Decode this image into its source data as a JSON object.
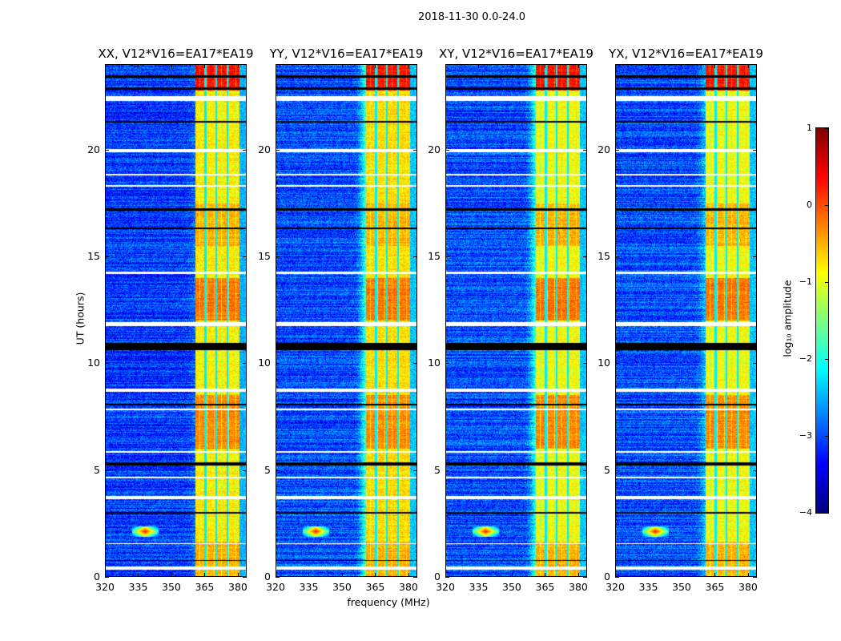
{
  "chart_data": {
    "type": "heatmap",
    "suptitle": "2018-11-30 0.0-24.0",
    "xlabel": "frequency (MHz)",
    "ylabel": "UT (hours)",
    "xlim": [
      320,
      384
    ],
    "ylim": [
      0,
      24
    ],
    "xticks": [
      "320",
      "335",
      "350",
      "365",
      "380"
    ],
    "xtick_values": [
      320,
      335,
      350,
      365,
      380
    ],
    "yticks": [
      "0",
      "5",
      "10",
      "15",
      "20"
    ],
    "ytick_values": [
      0,
      5,
      10,
      15,
      20
    ],
    "colorbar": {
      "label": "log₁₀ amplitude",
      "range": [
        -4,
        1
      ],
      "colormap": "jet",
      "ticks": [
        "1",
        "0",
        "−1",
        "−2",
        "−3",
        "−4"
      ],
      "tick_values": [
        1,
        0,
        -1,
        -2,
        -3,
        -4
      ]
    },
    "panels": [
      {
        "title": "XX, V12*V16=EA17*EA19",
        "background_level": -3.1,
        "band_level": -0.8,
        "edge_glow": 0.2
      },
      {
        "title": "YY, V12*V16=EA17*EA19",
        "background_level": -3.0,
        "band_level": -0.7,
        "edge_glow": 1.0
      },
      {
        "title": "XY, V12*V16=EA17*EA19",
        "background_level": -3.0,
        "band_level": -0.9,
        "edge_glow": 0.9
      },
      {
        "title": "YX, V12*V16=EA17*EA19",
        "background_level": -3.0,
        "band_level": -0.9,
        "edge_glow": 0.5
      }
    ],
    "band": {
      "freq_range_mhz": [
        361,
        381
      ],
      "subband_edges_mhz": [
        365.5,
        370.5,
        375.5
      ]
    },
    "hot_intervals_hours": [
      {
        "range": [
          22.8,
          24
        ],
        "level": 0.3
      },
      {
        "range": [
          12.0,
          14.0
        ],
        "level": -0.2
      },
      {
        "range": [
          6.0,
          8.5
        ],
        "level": -0.3
      },
      {
        "range": [
          15.5,
          17.5
        ],
        "level": -0.5
      },
      {
        "range": [
          0,
          1.6
        ],
        "level": -0.5
      }
    ],
    "masked_rows_hours": [
      [
        22.3,
        22.55
      ],
      [
        19.9,
        20.05
      ],
      [
        18.8,
        18.88
      ],
      [
        18.3,
        18.36
      ],
      [
        14.2,
        14.28
      ],
      [
        11.75,
        11.92
      ],
      [
        8.65,
        8.8
      ],
      [
        7.8,
        7.86
      ],
      [
        5.8,
        5.86
      ],
      [
        4.6,
        4.66
      ],
      [
        3.6,
        3.75
      ],
      [
        1.5,
        1.56
      ],
      [
        0.3,
        0.45
      ]
    ],
    "flagged_rows_hours": [
      [
        23.4,
        23.5
      ],
      [
        22.85,
        22.95
      ],
      [
        21.3,
        21.36
      ],
      [
        17.15,
        17.25
      ],
      [
        16.3,
        16.36
      ],
      [
        10.6,
        10.95
      ],
      [
        8.0,
        8.08
      ],
      [
        5.2,
        5.35
      ],
      [
        2.95,
        3.0
      ],
      [
        0.7,
        0.76
      ]
    ],
    "rfi_spot": {
      "freq_mhz": 338,
      "time_hours": 2.1,
      "level": 0.3
    }
  }
}
